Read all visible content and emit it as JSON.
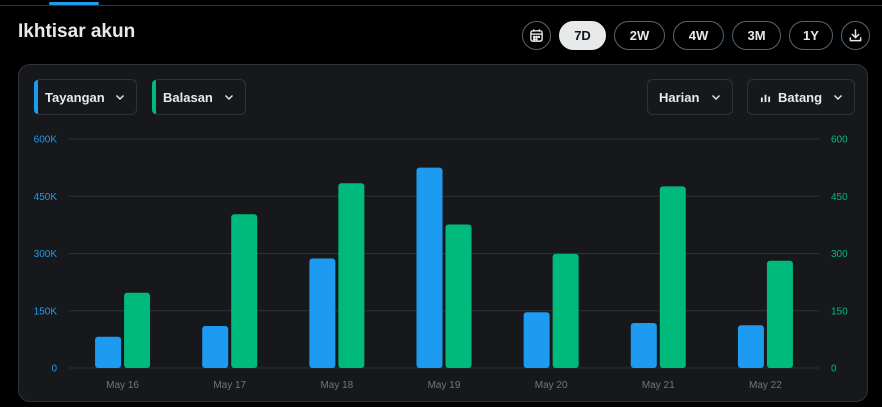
{
  "title": "Ikhtisar akun",
  "ranges": [
    "7D",
    "2W",
    "4W",
    "3M",
    "1Y"
  ],
  "active_range": "7D",
  "filters": {
    "metric1": "Tayangan",
    "metric2": "Balasan",
    "interval": "Harian",
    "chart_type": "Batang"
  },
  "colors": {
    "metric1": "#1d9bf0",
    "metric2": "#00ba7c"
  },
  "icons": {
    "calendar": "calendar-icon",
    "download": "download-icon",
    "bar_chart": "bar-chart-icon",
    "chevron": "chevron-down-icon"
  },
  "chart_data": {
    "type": "bar",
    "categories": [
      "May 16",
      "May 17",
      "May 18",
      "May 19",
      "May 20",
      "May 21",
      "May 22"
    ],
    "series": [
      {
        "name": "Tayangan",
        "axis": "left",
        "values": [
          82000,
          110000,
          287000,
          525000,
          146000,
          118000,
          112000
        ]
      },
      {
        "name": "Balasan",
        "axis": "right",
        "values": [
          197,
          403,
          484,
          376,
          299,
          476,
          281
        ]
      }
    ],
    "y_left": {
      "ticks": [
        "0",
        "150K",
        "300K",
        "450K",
        "600K"
      ],
      "lim": [
        0,
        600000
      ]
    },
    "y_right": {
      "ticks": [
        "0",
        "150",
        "300",
        "450",
        "600"
      ],
      "lim": [
        0,
        600
      ]
    },
    "grid": true
  }
}
